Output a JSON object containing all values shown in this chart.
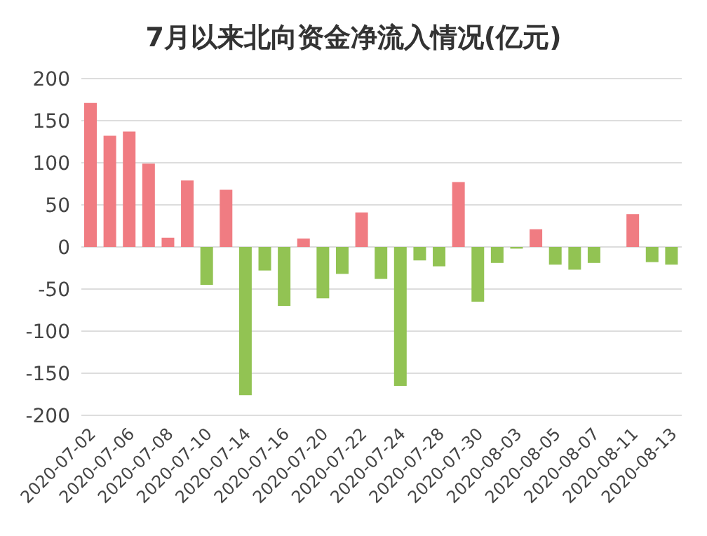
{
  "chart_data": {
    "type": "bar",
    "title": "7月以来北向资金净流入情况(亿元)",
    "categories": [
      "2020-07-02",
      null,
      "2020-07-06",
      null,
      "2020-07-08",
      null,
      "2020-07-10",
      null,
      "2020-07-14",
      null,
      "2020-07-16",
      null,
      "2020-07-20",
      null,
      "2020-07-22",
      null,
      "2020-07-24",
      null,
      "2020-07-28",
      null,
      "2020-07-30",
      null,
      "2020-08-03",
      null,
      "2020-08-05",
      null,
      "2020-08-07",
      null,
      "2020-08-11",
      null,
      "2020-08-13"
    ],
    "values": [
      171,
      132,
      137,
      99,
      11,
      79,
      -45,
      68,
      -176,
      -28,
      -70,
      10,
      -61,
      -32,
      41,
      -38,
      -165,
      -16,
      -23,
      77,
      -65,
      -19,
      -2,
      21,
      -21,
      -27,
      -19,
      0,
      39,
      -18,
      -21
    ],
    "colors": [
      "#f07c82",
      "#f07c82",
      "#f07c82",
      "#f07c82",
      "#f07c82",
      "#f07c82",
      "#92c353",
      "#f07c82",
      "#92c353",
      "#92c353",
      "#92c353",
      "#f07c82",
      "#92c353",
      "#92c353",
      "#f07c82",
      "#92c353",
      "#92c353",
      "#92c353",
      "#92c353",
      "#f07c82",
      "#92c353",
      "#92c353",
      "#92c353",
      "#f07c82",
      "#92c353",
      "#92c353",
      "#92c353",
      "#92c353",
      "#f07c82",
      "#92c353",
      "#92c353"
    ],
    "ylim": [
      -200,
      200
    ],
    "yticks": [
      -200,
      -150,
      -100,
      -50,
      0,
      50,
      100,
      150,
      200
    ],
    "grid": "y",
    "legend": false
  }
}
